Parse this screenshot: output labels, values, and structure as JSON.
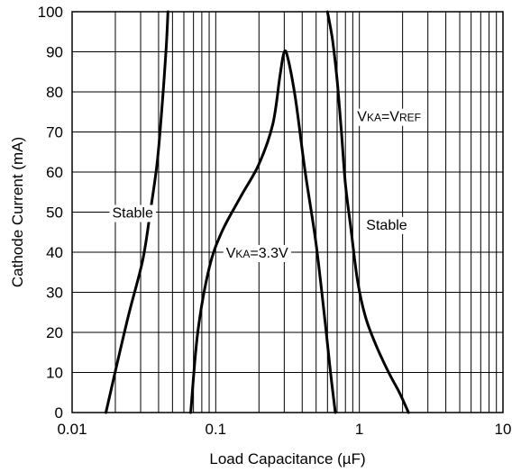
{
  "chart_data": {
    "type": "line",
    "xlabel": "Load Capacitance (µF)",
    "ylabel": "Cathode Current (mA)",
    "x_scale": "log",
    "xlim": [
      0.01,
      10
    ],
    "ylim": [
      0,
      100
    ],
    "x_ticks": [
      "0.01",
      "0.1",
      "1",
      "10"
    ],
    "y_ticks": [
      "0",
      "10",
      "20",
      "30",
      "40",
      "50",
      "60",
      "70",
      "80",
      "90",
      "100"
    ],
    "grid": true,
    "series": [
      {
        "x": [
          0.0172,
          0.0205,
          0.025,
          0.031,
          0.035,
          0.039,
          0.042,
          0.045,
          0.0465
        ],
        "y": [
          0,
          12,
          25,
          38,
          50,
          62,
          75,
          90,
          100
        ]
      },
      {
        "x": [
          0.067,
          0.075,
          0.09,
          0.11,
          0.15,
          0.2,
          0.25,
          0.28,
          0.3,
          0.32,
          0.36,
          0.42,
          0.5,
          0.58,
          0.63,
          0.68
        ],
        "y": [
          0,
          20,
          36,
          45,
          54,
          62,
          72,
          84,
          90,
          88,
          78,
          60,
          42,
          22,
          10,
          0
        ]
      },
      {
        "x": [
          0.6,
          0.65,
          0.7,
          0.75,
          0.8,
          0.88,
          0.97,
          1.1,
          1.3,
          1.6,
          1.9,
          2.2
        ],
        "y": [
          100,
          93,
          83,
          70,
          57,
          45,
          33,
          24,
          17,
          10,
          5,
          0
        ]
      }
    ],
    "annotations": {
      "stable_left": "Stable",
      "stable_right": "Stable",
      "vka_33_main": "V",
      "vka_33_sub": "KA",
      "vka_33_value": "=3.3V",
      "vka_vref_main": "V",
      "vka_vref_sub1": "KA",
      "vka_vref_eq": "=V",
      "vka_vref_sub2": "REF"
    }
  }
}
